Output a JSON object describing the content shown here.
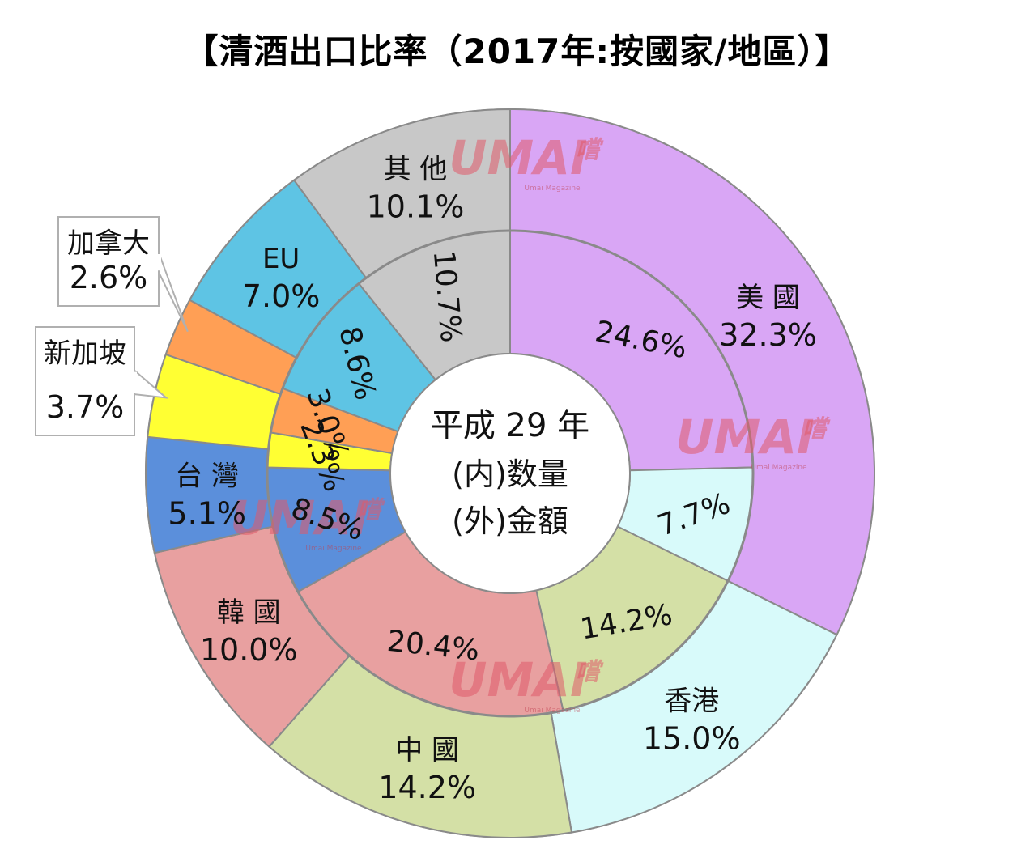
{
  "title": "【清酒出口比率（2017年:按國家/地區）】",
  "chart_data": {
    "type": "donut",
    "title": "【清酒出口比率（2017年:按國家/地區）】",
    "center_label": [
      "平成 29 年",
      "(内)数量",
      "(外)金額"
    ],
    "categories": [
      "美 國",
      "香港",
      "中 國",
      "韓 國",
      "台 灣",
      "新加坡",
      "加拿大",
      "EU",
      "其 他"
    ],
    "colors": {
      "美 國": "#d9a6f5",
      "香港": "#d8fafa",
      "中 國": "#d4e0a6",
      "韓 國": "#e8a0a0",
      "台 灣": "#5b8fdb",
      "新加坡": "#ffff33",
      "加拿大": "#ff9f55",
      "EU": "#5ec4e4",
      "其 他": "#c8c8c8"
    },
    "series": [
      {
        "name": "(外)金額",
        "values": [
          32.3,
          15.0,
          14.2,
          10.0,
          5.1,
          3.7,
          2.6,
          7.0,
          10.1
        ],
        "labels": [
          "32.3%",
          "15.0%",
          "14.2%",
          "10.0%",
          "5.1%",
          "3.7%",
          "2.6%",
          "7.0%",
          "10.1%"
        ]
      },
      {
        "name": "(内)数量",
        "values": [
          24.6,
          7.7,
          14.2,
          20.4,
          8.5,
          2.3,
          3.0,
          8.6,
          10.7
        ],
        "labels": [
          "24.6%",
          "7.7%",
          "14.2%",
          "20.4%",
          "8.5%",
          "2.3%",
          "3.0%",
          "8.6%",
          "10.7%"
        ]
      }
    ]
  },
  "watermark": {
    "logo": "UMAI",
    "kanji": "嚐",
    "sub": "Umai Magazine"
  }
}
